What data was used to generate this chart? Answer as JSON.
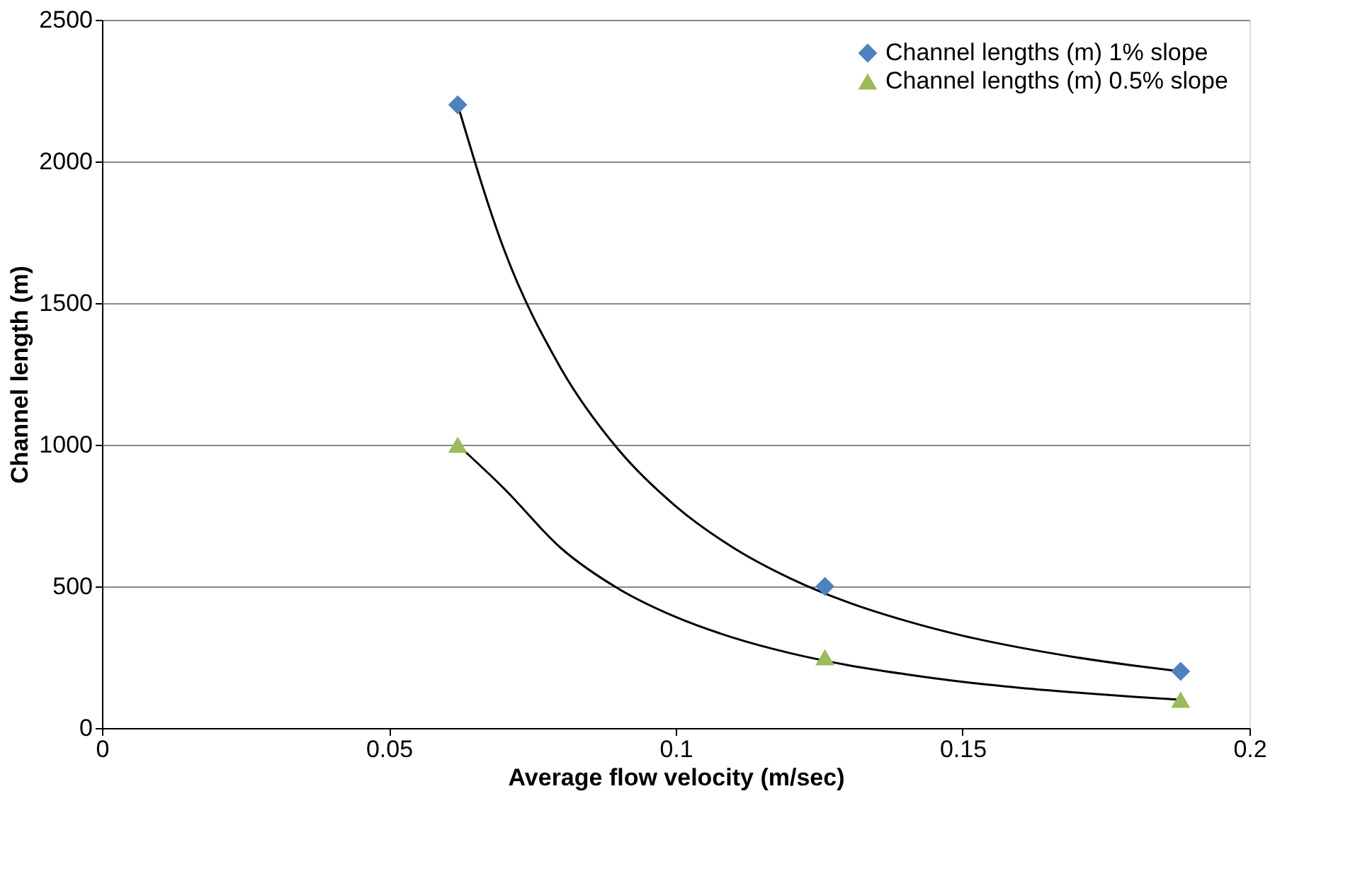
{
  "chart_data": {
    "type": "scatter",
    "xlabel": "Average flow velocity (m/sec)",
    "ylabel": "Channel length (m)",
    "xlim": [
      0,
      0.2
    ],
    "xticks": [
      0,
      0.05,
      0.1,
      0.15,
      0.2
    ],
    "ylim": [
      0,
      2500
    ],
    "yticks": [
      0,
      500,
      1000,
      1500,
      2000,
      2500
    ],
    "grid": "y",
    "legend": "top right",
    "series": [
      {
        "name": "Channel lengths (m) 1% slope",
        "color": "#4f81bd",
        "marker": "diamond",
        "x": [
          0.062,
          0.126,
          0.188
        ],
        "values": [
          2200,
          500,
          200
        ]
      },
      {
        "name": "Channel lengths (m) 0.5% slope",
        "color": "#9bbb59",
        "marker": "triangle",
        "x": [
          0.062,
          0.126,
          0.188
        ],
        "values": [
          1000,
          250,
          100
        ]
      },
      {
        "type": "line",
        "color": "#000000",
        "x": [
          0.062,
          0.07,
          0.08,
          0.09,
          0.1,
          0.11,
          0.12,
          0.13,
          0.14,
          0.15,
          0.16,
          0.17,
          0.18,
          0.188
        ],
        "values": [
          2200,
          1693,
          1269,
          983,
          783,
          637,
          528,
          444,
          379,
          326,
          284,
          249,
          220,
          200
        ]
      },
      {
        "type": "line",
        "color": "#000000",
        "x": [
          0.062,
          0.07,
          0.08,
          0.09,
          0.1,
          0.11,
          0.12,
          0.13,
          0.14,
          0.15,
          0.16,
          0.17,
          0.18,
          0.188
        ],
        "values": [
          1000,
          847,
          635,
          492,
          392,
          319,
          264,
          222,
          190,
          163,
          142,
          125,
          110,
          100
        ]
      }
    ]
  }
}
